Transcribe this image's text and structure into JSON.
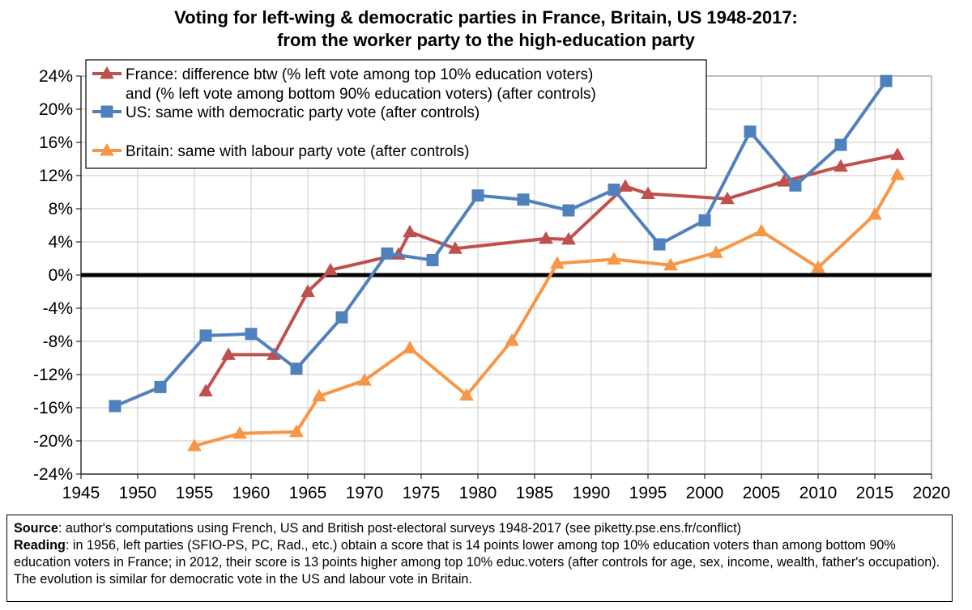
{
  "title_line1": "Voting for left-wing & democratic parties in France, Britain, US 1948-2017:",
  "title_line2": "from the worker party to the high-education party",
  "chart_data": {
    "type": "line",
    "title": "Voting for left-wing & democratic parties in France, Britain, US 1948-2017: from the worker party to the high-education party",
    "xlim": [
      1945,
      2020
    ],
    "ylim": [
      -24,
      24
    ],
    "x_ticks": [
      "1945",
      "1950",
      "1955",
      "1960",
      "1965",
      "1970",
      "1975",
      "1980",
      "1985",
      "1990",
      "1995",
      "2000",
      "2005",
      "2010",
      "2015",
      "2020"
    ],
    "y_ticks": [
      "24%",
      "20%",
      "16%",
      "12%",
      "8%",
      "4%",
      "0%",
      "-4%",
      "-8%",
      "-12%",
      "-16%",
      "-20%",
      "-24%"
    ],
    "grid": true,
    "legend_position": "top-left",
    "series": [
      {
        "name": "France: difference btw (% left vote among top 10% education voters) and (% left vote among bottom 90% education voters) (after controls)",
        "legend_line1": "France: difference btw (% left vote among top 10% education voters)",
        "legend_line2": "and (% left vote among bottom 90% education voters) (after controls)",
        "color": "#c0504d",
        "marker": "triangle",
        "x": [
          1956,
          1958,
          1962,
          1965,
          1967,
          1973,
          1974,
          1978,
          1986,
          1988,
          1993,
          1995,
          2002,
          2007,
          2012,
          2017
        ],
        "y": [
          -14.0,
          -9.6,
          -9.6,
          -2.0,
          0.6,
          2.5,
          5.2,
          3.2,
          4.4,
          4.3,
          10.7,
          9.8,
          9.2,
          11.3,
          13.1,
          14.5
        ]
      },
      {
        "name": "US: same with democratic party vote (after controls)",
        "color": "#4f81bd",
        "marker": "square",
        "x": [
          1948,
          1952,
          1956,
          1960,
          1964,
          1968,
          1972,
          1976,
          1980,
          1984,
          1988,
          1992,
          1996,
          2000,
          2004,
          2008,
          2012,
          2016
        ],
        "y": [
          -15.8,
          -13.5,
          -7.3,
          -7.1,
          -11.3,
          -5.1,
          2.6,
          1.8,
          9.6,
          9.1,
          7.8,
          10.3,
          3.7,
          6.6,
          17.3,
          10.8,
          15.7,
          23.4
        ]
      },
      {
        "name": "Britain: same with labour party vote (after controls)",
        "color": "#f79646",
        "marker": "triangle",
        "x": [
          1955,
          1959,
          1964,
          1966,
          1970,
          1974,
          1979,
          1983,
          1987,
          1992,
          1997,
          2001,
          2005,
          2010,
          2015,
          2017
        ],
        "y": [
          -20.6,
          -19.1,
          -18.9,
          -14.6,
          -12.7,
          -8.8,
          -14.5,
          -7.9,
          1.4,
          1.9,
          1.2,
          2.7,
          5.3,
          0.9,
          7.3,
          12.1
        ]
      }
    ]
  },
  "notes": {
    "source_label": "Source",
    "source_text": ": author's computations using French, US and British post-electoral surveys 1948-2017 (see piketty.pse.ens.fr/conflict)",
    "reading_label": "Reading",
    "reading_text": ": in 1956, left parties (SFIO-PS, PC, Rad., etc.) obtain a score that is 14 points lower among top 10% education voters than among bottom 90% education voters in France; in 2012, their score is 13 points higher among top 10% educ.voters (after controls for age, sex, income, wealth, father's occupation). The evolution is similar for democratic vote in the US and labour vote in Britain."
  }
}
